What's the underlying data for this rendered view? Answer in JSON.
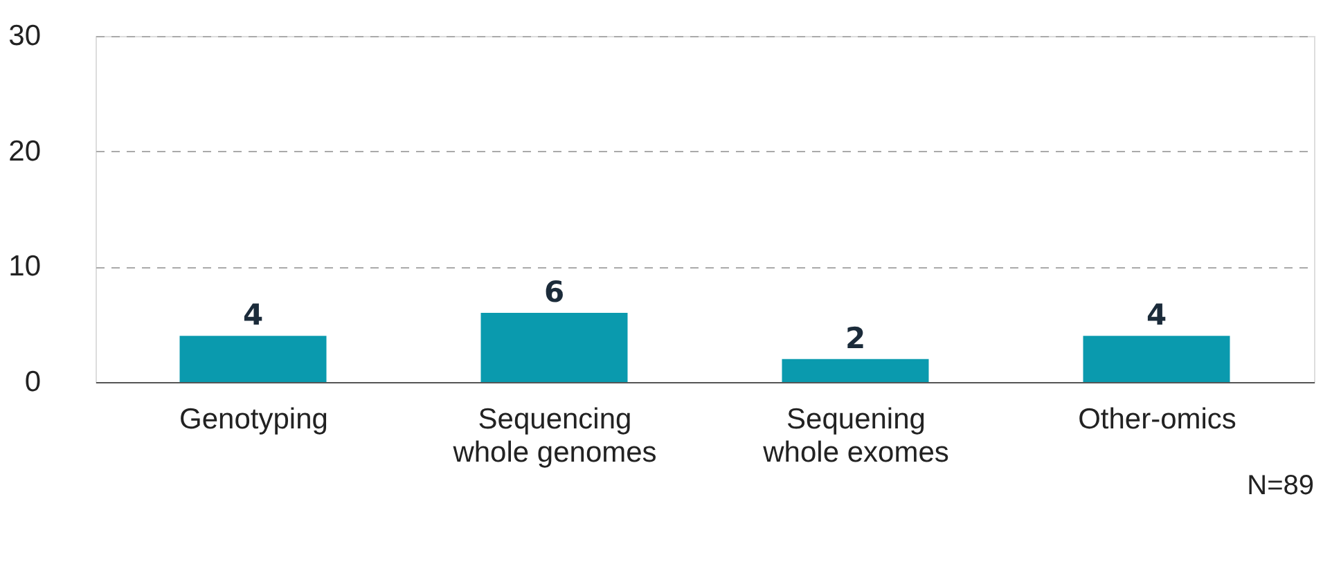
{
  "chart_data": {
    "type": "bar",
    "categories": [
      "Genotyping",
      "Sequencing whole genomes",
      "Sequening whole exomes",
      "Other-omics"
    ],
    "values": [
      4,
      6,
      2,
      4
    ],
    "color": "#0a9aae",
    "ylim": [
      0,
      30
    ],
    "yticks": [
      0,
      10,
      20,
      30
    ],
    "grid": "y",
    "data_labels": true,
    "annotations": [
      "N=89"
    ]
  }
}
